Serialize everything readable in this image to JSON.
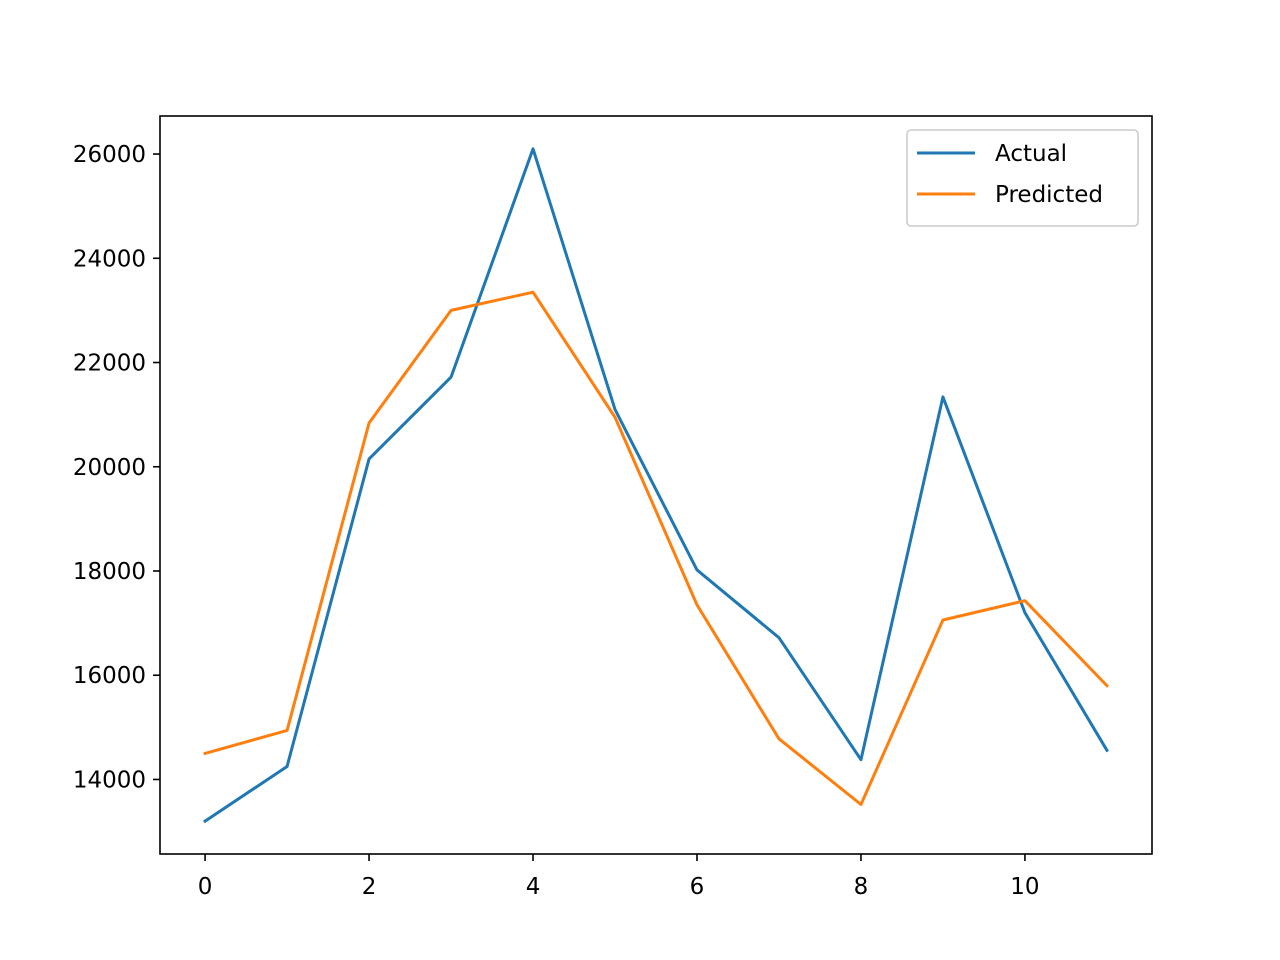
{
  "chart_data": {
    "type": "line",
    "title": "",
    "xlabel": "",
    "ylabel": "",
    "x": [
      0,
      1,
      2,
      3,
      4,
      5,
      6,
      7,
      8,
      9,
      10,
      11
    ],
    "xlim": [
      -0.55,
      11.55
    ],
    "ylim": [
      12570,
      26730
    ],
    "x_ticks": [
      0,
      2,
      4,
      6,
      8,
      10
    ],
    "y_ticks": [
      14000,
      16000,
      18000,
      20000,
      22000,
      24000,
      26000
    ],
    "grid": false,
    "legend_position": "top-right",
    "series": [
      {
        "name": "Actual",
        "color": "#1f77b4",
        "values": [
          13200,
          14250,
          20150,
          21720,
          26100,
          21100,
          18020,
          16720,
          14380,
          21340,
          17200,
          14560
        ]
      },
      {
        "name": "Predicted",
        "color": "#ff7f0e",
        "values": [
          14500,
          14940,
          20840,
          23000,
          23350,
          20950,
          17350,
          14780,
          13520,
          17060,
          17430,
          15800
        ]
      }
    ]
  }
}
